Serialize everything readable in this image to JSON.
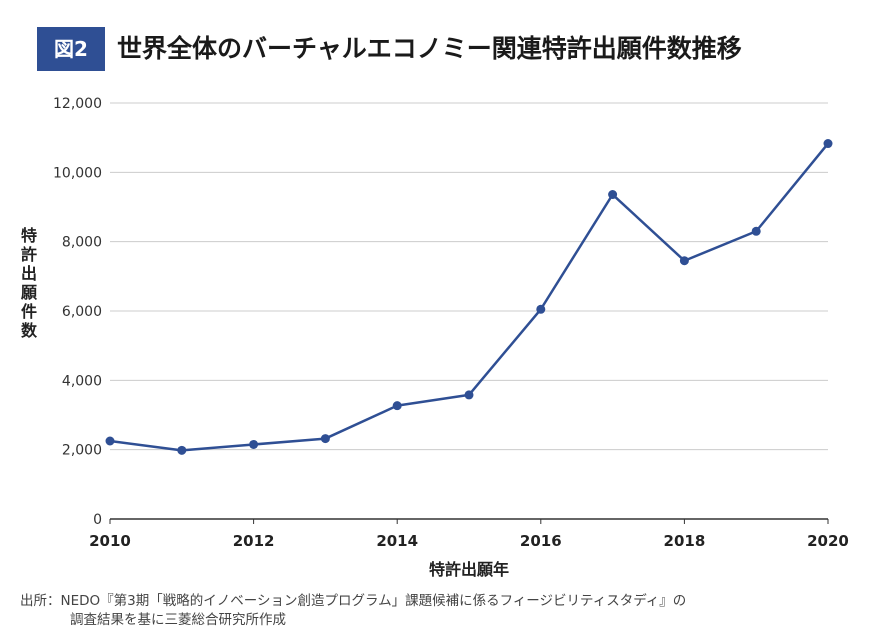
{
  "figure": {
    "badge": "図2",
    "title": "世界全体のバーチャルエコノミー関連特許出願件数推移"
  },
  "source": {
    "line1": "出所：NEDO『第3期「戦略的イノベーション創造プログラム」課題候補に係るフィージビリティスタディ』の",
    "line2": "調査結果を基に三菱総合研究所作成"
  },
  "colors": {
    "accent": "#2f4f94",
    "grid": "#cccccc",
    "axis": "#333333"
  },
  "chart_data": {
    "type": "line",
    "title": "世界全体のバーチャルエコノミー関連特許出願件数推移",
    "xlabel": "特許出願年",
    "ylabel": "特許出願件数",
    "x": [
      2010,
      2011,
      2012,
      2013,
      2014,
      2015,
      2016,
      2017,
      2018,
      2019,
      2020
    ],
    "series": [
      {
        "name": "特許出願件数",
        "values": [
          2250,
          1980,
          2150,
          2320,
          3270,
          3580,
          6050,
          9360,
          7450,
          8300,
          10830
        ]
      }
    ],
    "ylim": [
      0,
      12000
    ],
    "xlim": [
      2010,
      2020
    ],
    "yticks": [
      "0",
      "2,000",
      "4,000",
      "6,000",
      "8,000",
      "10,000",
      "12,000"
    ],
    "xticks": [
      "2010",
      "2012",
      "2014",
      "2016",
      "2018",
      "2020"
    ],
    "grid": true,
    "legend": "none"
  }
}
